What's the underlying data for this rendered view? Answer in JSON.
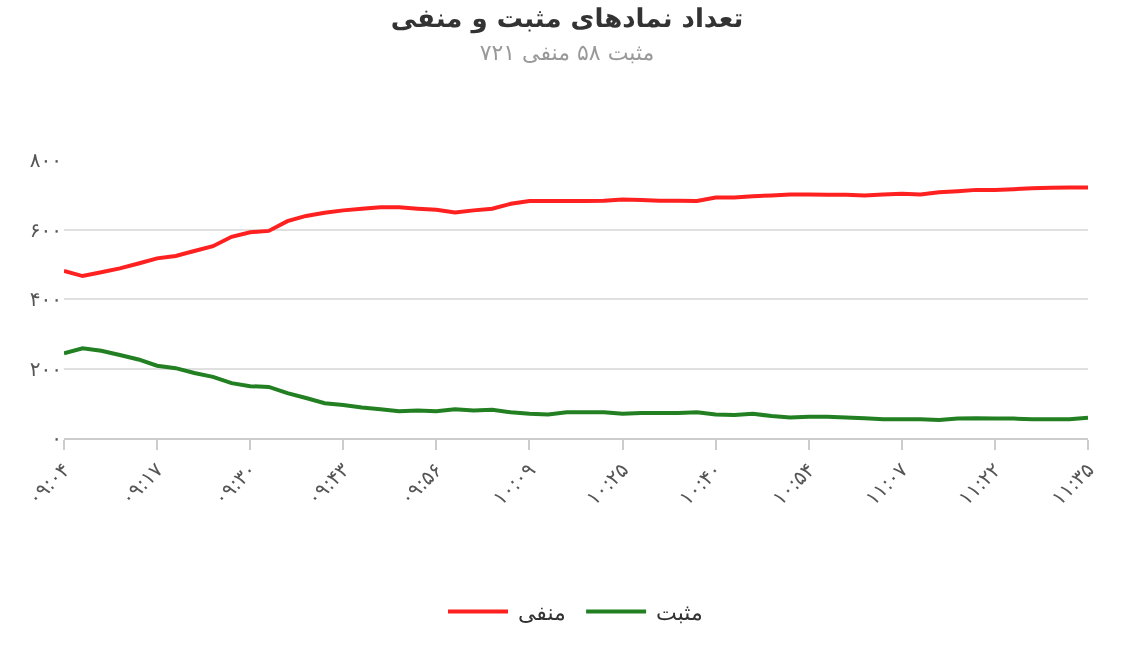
{
  "chart_data": {
    "type": "line",
    "title": "تعداد نمادهای مثبت و منفی",
    "subtitle": "مثبت ۵۸ منفی ۷۲۱",
    "categories": [
      "۰۹:۰۴",
      null,
      null,
      null,
      null,
      "۰۹:۱۷",
      null,
      null,
      null,
      null,
      "۰۹:۳۰",
      null,
      null,
      null,
      null,
      "۰۹:۴۳",
      null,
      null,
      null,
      null,
      "۰۹:۵۶",
      null,
      null,
      null,
      null,
      "۱۰:۰۹",
      null,
      null,
      null,
      null,
      "۱۰:۲۵",
      null,
      null,
      null,
      null,
      "۱۰:۴۰",
      null,
      null,
      null,
      null,
      "۱۰:۵۴",
      null,
      null,
      null,
      null,
      "۱۱:۰۷",
      null,
      null,
      null,
      null,
      "۱۱:۲۲",
      null,
      null,
      null,
      null,
      "۱۱:۳۵"
    ],
    "series": [
      {
        "name": "منفی",
        "color": "#ff2020",
        "values": [
          481,
          466,
          477,
          488,
          502,
          517,
          524,
          538,
          552,
          579,
          592,
          596,
          624,
          639,
          648,
          655,
          660,
          664,
          664,
          660,
          657,
          649,
          655,
          660,
          674,
          682,
          682,
          682,
          682,
          683,
          686,
          685,
          683,
          683,
          682,
          692,
          692,
          696,
          698,
          701,
          701,
          700,
          700,
          698,
          701,
          703,
          701,
          707,
          710,
          714,
          714,
          716,
          719,
          720,
          721,
          721
        ]
      },
      {
        "name": "مثبت",
        "color": "#228022",
        "values": [
          244,
          258,
          251,
          239,
          226,
          208,
          201,
          187,
          176,
          158,
          149,
          147,
          129,
          115,
          100,
          95,
          88,
          83,
          77,
          79,
          77,
          83,
          79,
          81,
          74,
          70,
          68,
          74,
          74,
          74,
          70,
          72,
          72,
          72,
          74,
          68,
          66,
          70,
          63,
          59,
          61,
          61,
          59,
          57,
          54,
          54,
          54,
          52,
          56,
          57,
          56,
          56,
          54,
          54,
          54,
          58
        ]
      }
    ],
    "ylim": [
      0,
      800
    ],
    "yticks": [
      {
        "value": 0,
        "label": "۰"
      },
      {
        "value": 200,
        "label": "۲۰۰"
      },
      {
        "value": 400,
        "label": "۴۰۰"
      },
      {
        "value": 600,
        "label": "۶۰۰"
      },
      {
        "value": 800,
        "label": "۸۰۰"
      }
    ],
    "grid": "y",
    "legend": "bottom",
    "marker": "none",
    "line_style": "solid"
  }
}
